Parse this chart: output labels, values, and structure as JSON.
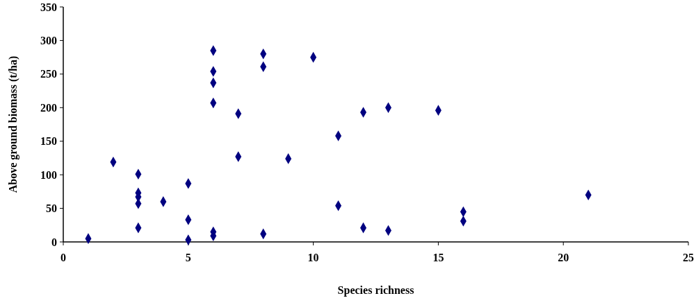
{
  "chart_data": {
    "type": "scatter",
    "xlabel": "Species richness",
    "ylabel": "Above ground biomass (t/ha)",
    "xlim": [
      0,
      25
    ],
    "xticks": [
      0,
      5,
      10,
      15,
      20,
      25
    ],
    "ylim": [
      0,
      350
    ],
    "yticks": [
      0,
      50,
      100,
      150,
      200,
      250,
      300,
      350
    ],
    "marker": "diamond",
    "series": [
      {
        "color": "#000080",
        "x": [
          1,
          2,
          3,
          3,
          3,
          3,
          3,
          4,
          5,
          5,
          5,
          6,
          6,
          6,
          6,
          6,
          6,
          7,
          7,
          8,
          8,
          8,
          9,
          10,
          11,
          11,
          12,
          12,
          13,
          13,
          15,
          16,
          16,
          21
        ],
        "values": [
          5,
          119,
          101,
          73,
          67,
          57,
          21,
          60,
          87,
          33,
          3,
          285,
          254,
          237,
          207,
          15,
          9,
          191,
          127,
          280,
          261,
          12,
          124,
          275,
          158,
          54,
          193,
          21,
          200,
          17,
          196,
          45,
          31,
          70
        ]
      }
    ]
  }
}
